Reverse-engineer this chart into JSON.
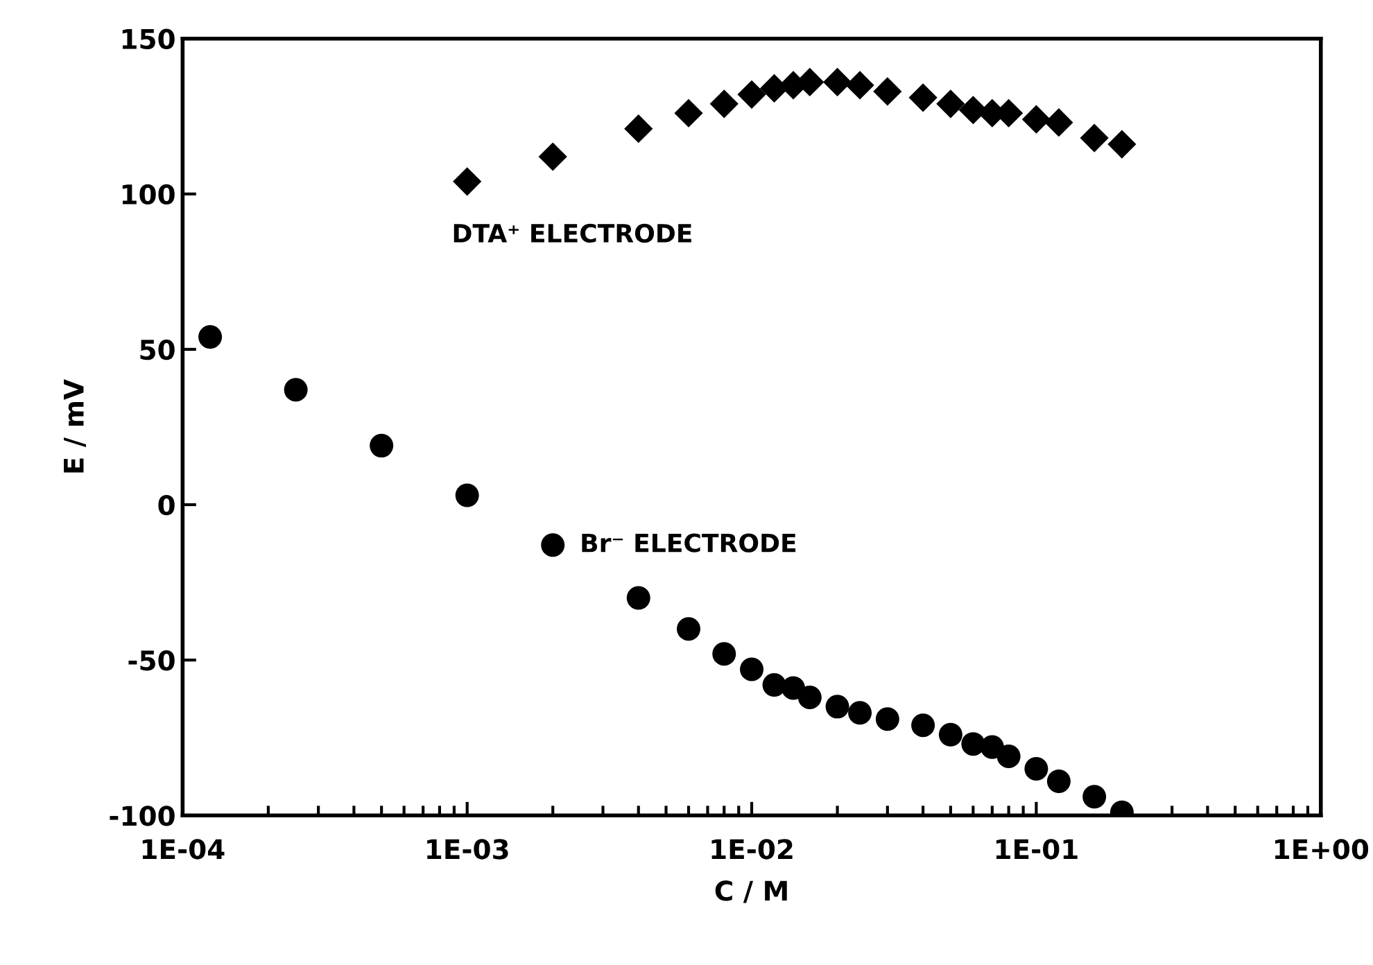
{
  "chart_data": {
    "type": "scatter",
    "xlabel": "C / M",
    "ylabel": "E / mV",
    "log": "x",
    "grid": false,
    "legend": false,
    "xlim": [
      0.0001,
      1
    ],
    "xticks": [
      {
        "value": 0.0001,
        "label": "1E-04"
      },
      {
        "value": 0.001,
        "label": "1E-03"
      },
      {
        "value": 0.01,
        "label": "1E-02"
      },
      {
        "value": 0.1,
        "label": "1E-01"
      },
      {
        "value": 1,
        "label": "1E+00"
      }
    ],
    "ylim": [
      -100,
      150
    ],
    "yticks": [
      -100,
      -50,
      0,
      50,
      100,
      150
    ],
    "series": [
      {
        "name": "DTA⁺ ELECTRODE",
        "color": "#000000",
        "marker": "diamond",
        "x": [
          0.001,
          0.002,
          0.004,
          0.006,
          0.008,
          0.01,
          0.012,
          0.014,
          0.016,
          0.02,
          0.024,
          0.03,
          0.04,
          0.05,
          0.06,
          0.07,
          0.08,
          0.1,
          0.12,
          0.16,
          0.2
        ],
        "values": [
          104,
          112,
          121,
          126,
          129,
          132,
          134,
          135,
          136,
          136,
          135,
          133,
          131,
          129,
          127,
          126,
          126,
          124,
          123,
          118,
          116
        ]
      },
      {
        "name": "Br⁻ ELECTRODE",
        "color": "#000000",
        "marker": "circle",
        "x": [
          0.000125,
          0.00025,
          0.0005,
          0.001,
          0.002,
          0.004,
          0.006,
          0.008,
          0.01,
          0.012,
          0.014,
          0.016,
          0.02,
          0.024,
          0.03,
          0.04,
          0.05,
          0.06,
          0.07,
          0.08,
          0.1,
          0.12,
          0.16,
          0.2
        ],
        "values": [
          54,
          37,
          19,
          3,
          -13,
          -30,
          -40,
          -48,
          -53,
          -58,
          -59,
          -62,
          -65,
          -67,
          -69,
          -71,
          -74,
          -77,
          -78,
          -81,
          -85,
          -89,
          -94,
          -99
        ]
      }
    ]
  }
}
